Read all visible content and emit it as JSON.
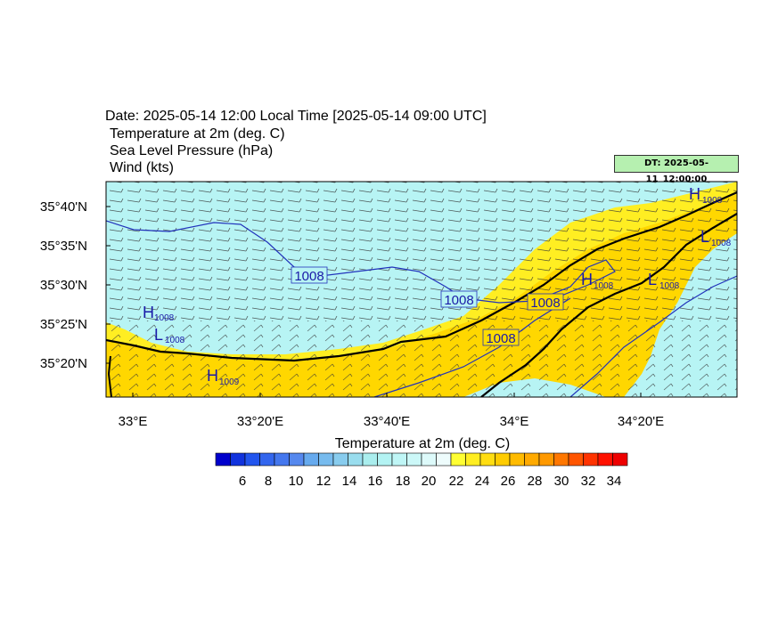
{
  "header": {
    "date_line": "Date: 2025-05-14  12:00 Local Time [2025-05-14  09:00 UTC]",
    "var1": "Temperature at 2m   (deg. C)",
    "var2": "Sea Level Pressure   (hPa)",
    "var3": "Wind   (kts)",
    "dt_badge": "DT: 2025-05-11_12:00:00"
  },
  "map": {
    "lat_ticks": [
      "35°40'N",
      "35°35'N",
      "35°30'N",
      "35°25'N",
      "35°20'N"
    ],
    "lon_ticks": [
      "33°E",
      "33°20'E",
      "33°40'E",
      "34°E",
      "34°20'E"
    ],
    "colors": {
      "sea": "#b7f4f4",
      "warm_22": "#ffee22",
      "warm_24": "#ffdd00",
      "warm_26": "#ffcc00",
      "contour": "#2233bb",
      "coast": "#000000"
    },
    "isobar_labels": [
      {
        "text": "1008"
      },
      {
        "text": "1008"
      },
      {
        "text": "1008"
      },
      {
        "text": "1008"
      }
    ],
    "pressure_centers": [
      {
        "letter": "H",
        "value": "1008"
      },
      {
        "letter": "L",
        "value": "1008"
      },
      {
        "letter": "H",
        "value": "1009"
      },
      {
        "letter": "H",
        "value": "1008"
      },
      {
        "letter": "L",
        "value": "1008"
      },
      {
        "letter": "H",
        "value": "1008"
      },
      {
        "letter": "L",
        "value": "1008"
      }
    ]
  },
  "colorbar": {
    "title": "Temperature at 2m  (deg. C)",
    "labels": [
      "6",
      "8",
      "10",
      "12",
      "14",
      "16",
      "18",
      "20",
      "22",
      "24",
      "26",
      "28",
      "30",
      "32",
      "34"
    ],
    "colors": [
      "#0000cc",
      "#1133dd",
      "#2255ee",
      "#3366ee",
      "#4477ee",
      "#5588ee",
      "#66aaee",
      "#77bbee",
      "#88ccee",
      "#99ddee",
      "#aaeeee",
      "#b3f3f3",
      "#bff6f6",
      "#ccf8f8",
      "#ddfafa",
      "#eefcfc",
      "#ffff33",
      "#ffee22",
      "#ffdd11",
      "#ffcc00",
      "#ffbb00",
      "#ffaa00",
      "#ff9900",
      "#ff7700",
      "#ff5500",
      "#ff3300",
      "#ff1100",
      "#ee0000"
    ]
  }
}
